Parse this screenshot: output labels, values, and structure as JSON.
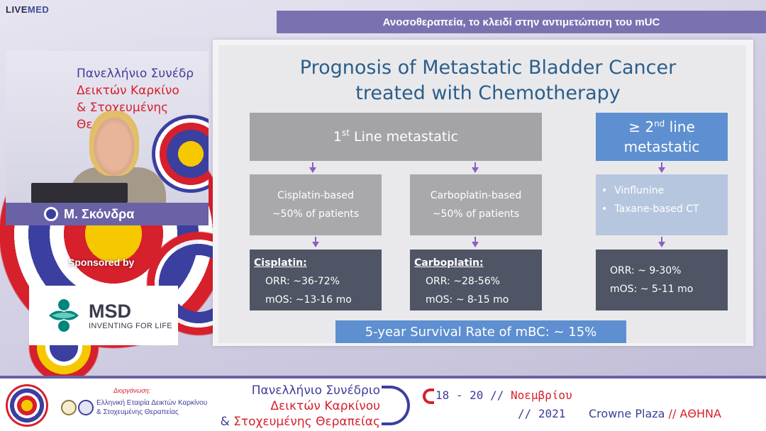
{
  "brand": {
    "live": "LIVE",
    "med": "MED"
  },
  "title_banner": "Ανοσοθεραπεία, το κλειδί στην αντιμετώπιση του mUC",
  "speaker": {
    "name": "Μ. Σκόνδρα",
    "booth_line1": "Πανελλήνιο Συνέδρ",
    "booth_line2": "Δεικτών Καρκίνο",
    "booth_line3_amp": "&",
    "booth_line3": "Στοχευμένης Θεραπεί"
  },
  "sponsor": {
    "label": "Sponsored by",
    "name": "MSD",
    "tagline": "INVENTING FOR LIFE"
  },
  "slide": {
    "title_line1": "Prognosis of Metastatic Bladder Cancer",
    "title_line2": "treated with Chemotherapy",
    "first_line": {
      "num": "1",
      "sup": "st",
      "text": "Line metastatic"
    },
    "second_line": {
      "prefix": "≥ 2",
      "sup": "nd",
      "text1": "line",
      "text2": "metastatic"
    },
    "cisplatin_based": {
      "line1": "Cisplatin-based",
      "line2": "~50% of patients"
    },
    "carboplatin_based": {
      "line1": "Carboplatin-based",
      "line2": "~50% of patients"
    },
    "second_line_drugs": [
      "Vinflunine",
      "Taxane-based CT"
    ],
    "bullet": "•",
    "cisplatin": {
      "label": "Cisplatin:",
      "orr": "ORR:  ~36-72%",
      "mos": "mOS: ~13-16 mo"
    },
    "carboplatin": {
      "label": "Carboplatin:",
      "orr": "ORR:  ~28-56%",
      "mos": "mOS:  ~ 8-15 mo"
    },
    "second": {
      "orr": "ORR:  ~ 9-30%",
      "mos": "mOS:  ~ 5-11 mo"
    },
    "survival": "5-year Survival Rate of mBC:  ~ 15%"
  },
  "footer": {
    "org_label": "Διοργάνωση:",
    "org_name_line1": "Ελληνική Εταιρία Δεικτών Καρκίνου",
    "org_name_line2": "& Στοχευμένης Θεραπείας",
    "congress_line1": "Πανελλήνιο Συνέδριο",
    "congress_line2": "Δεικτών Καρκίνου",
    "congress_amp": "&",
    "congress_line3": "Στοχευμένης Θεραπείας",
    "date_days": "18 - 20 //",
    "date_month": "Νοεμβρίου",
    "date_year": "// 2021",
    "venue_name": "Crowne Plaza",
    "venue_sep": "//",
    "venue_city": "ΑΘΗΝΑ"
  },
  "colors": {
    "accent_purple": "#6a62a6",
    "slide_title_blue": "#2c5e8a",
    "box_blue": "#5e8fd0",
    "box_dark": "#4f5564",
    "brand_red": "#d6202c"
  }
}
